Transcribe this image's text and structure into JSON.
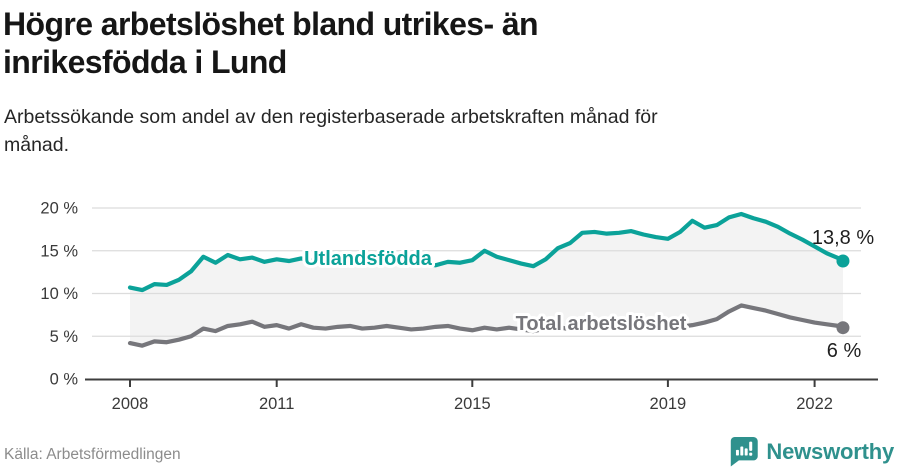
{
  "header": {
    "title_lines": [
      "Högre arbetslöshet bland utrikes- än",
      "inrikesfödda i Lund"
    ],
    "subtitle_lines": [
      "Arbetssökande som andel av den registerbaserade arbetskraften månad för",
      "månad."
    ]
  },
  "footer": {
    "source": "Källa: Arbetsförmedlingen",
    "logo_text": "Newsworthy",
    "logo_icon": "bar-chart-speech-bubble-icon",
    "logo_color": "#2f918d"
  },
  "chart_data": {
    "type": "line",
    "title": "Högre arbetslöshet bland utrikes- än inrikesfödda i Lund",
    "subtitle": "Arbetssökande som andel av den registerbaserade arbetskraften månad för månad.",
    "x_unit": "decimal year (monthly data, values estimated quarterly from chart)",
    "xlim": [
      2008,
      2022.75
    ],
    "ylim": [
      0,
      21
    ],
    "x_ticks": [
      2008,
      2011,
      2015,
      2019,
      2022
    ],
    "x_tick_labels": [
      "2008",
      "2011",
      "2015",
      "2019",
      "2022"
    ],
    "y_ticks": [
      0,
      5,
      10,
      15,
      20
    ],
    "y_tick_labels": [
      "0 %",
      "5 %",
      "10 %",
      "15 %",
      "20 %"
    ],
    "grid": "horizontal",
    "legend_position": "inline-labels",
    "fill_between_series": true,
    "colors": {
      "grid": "#dcdcdc",
      "axis": "#3d3d3d",
      "fill_between": "#f3f3f3",
      "tick_label": "#3a3a3a",
      "value_label": "#1f1f1f"
    },
    "x": [
      2008,
      2008.25,
      2008.5,
      2008.75,
      2009,
      2009.25,
      2009.5,
      2009.75,
      2010,
      2010.25,
      2010.5,
      2010.75,
      2011,
      2011.25,
      2011.5,
      2011.75,
      2012,
      2012.25,
      2012.5,
      2012.75,
      2013,
      2013.25,
      2013.5,
      2013.75,
      2014,
      2014.25,
      2014.5,
      2014.75,
      2015,
      2015.25,
      2015.5,
      2015.75,
      2016,
      2016.25,
      2016.5,
      2016.75,
      2017,
      2017.25,
      2017.5,
      2017.75,
      2018,
      2018.25,
      2018.5,
      2018.75,
      2019,
      2019.25,
      2019.5,
      2019.75,
      2020,
      2020.25,
      2020.5,
      2020.75,
      2021,
      2021.25,
      2021.5,
      2021.75,
      2022,
      2022.25,
      2022.5,
      2022.58
    ],
    "series": [
      {
        "name": "Utlandsfödda",
        "color": "#0ba299",
        "end_label": "13,8 %",
        "end_value": 13.8,
        "values": [
          10.7,
          10.4,
          11.1,
          11.0,
          11.6,
          12.6,
          14.3,
          13.6,
          14.5,
          14.0,
          14.2,
          13.7,
          14.0,
          13.8,
          14.1,
          13.8,
          13.6,
          13.9,
          14.2,
          13.8,
          13.7,
          13.9,
          14.1,
          13.7,
          13.5,
          13.3,
          13.7,
          13.6,
          13.9,
          15.0,
          14.3,
          13.9,
          13.5,
          13.2,
          14.0,
          15.3,
          15.9,
          17.1,
          17.2,
          17.0,
          17.1,
          17.3,
          16.9,
          16.6,
          16.4,
          17.2,
          18.5,
          17.7,
          18.0,
          18.9,
          19.3,
          18.8,
          18.4,
          17.8,
          17.0,
          16.3,
          15.5,
          14.7,
          14.1,
          13.8
        ]
      },
      {
        "name": "Total arbetslöshet",
        "color": "#76767b",
        "end_label": "6 %",
        "end_value": 6.0,
        "values": [
          4.2,
          3.9,
          4.4,
          4.3,
          4.6,
          5.0,
          5.9,
          5.6,
          6.2,
          6.4,
          6.7,
          6.1,
          6.3,
          5.9,
          6.4,
          6.0,
          5.9,
          6.1,
          6.2,
          5.9,
          6.0,
          6.2,
          6.0,
          5.8,
          5.9,
          6.1,
          6.2,
          5.9,
          5.7,
          6.0,
          5.8,
          6.0,
          5.8,
          5.6,
          5.9,
          6.1,
          5.8,
          6.0,
          6.1,
          5.9,
          6.0,
          6.1,
          5.9,
          6.1,
          5.9,
          6.1,
          6.3,
          6.6,
          7.0,
          7.9,
          8.6,
          8.3,
          8.0,
          7.6,
          7.2,
          6.9,
          6.6,
          6.4,
          6.2,
          6.0
        ]
      }
    ]
  }
}
